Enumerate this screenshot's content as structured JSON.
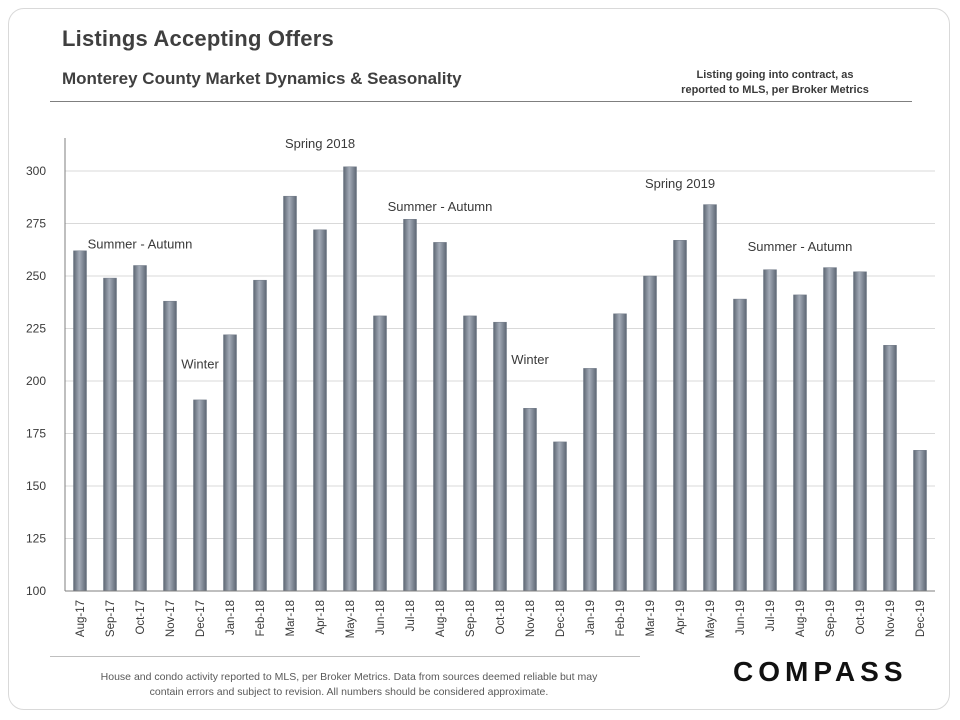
{
  "header": {
    "title": "Listings Accepting Offers",
    "subtitle": "Monterey County Market Dynamics & Seasonality",
    "note_line1": "Listing going into contract, as",
    "note_line2": "reported to MLS, per Broker Metrics"
  },
  "footer": {
    "disclaimer_line1": "House and condo activity reported to MLS, per Broker Metrics. Data from sources deemed reliable but may",
    "disclaimer_line2": "contain errors and subject to revision. All numbers should be considered approximate.",
    "logo_text": "COMPASS"
  },
  "colors": {
    "bar_fill": "#6f7886",
    "bar_highlight": "#a3abb7",
    "gridline": "#d9d9d9",
    "axis": "#7f7f7f",
    "text": "#3a3a3a"
  },
  "chart_data": {
    "type": "bar",
    "title": "Listings Accepting Offers",
    "xlabel": "",
    "ylabel": "",
    "ylim": [
      100,
      310
    ],
    "yticks": [
      100,
      125,
      150,
      175,
      200,
      225,
      250,
      275,
      300
    ],
    "grid": true,
    "categories": [
      "Aug-17",
      "Sep-17",
      "Oct-17",
      "Nov-17",
      "Dec-17",
      "Jan-18",
      "Feb-18",
      "Mar-18",
      "Apr-18",
      "May-18",
      "Jun-18",
      "Jul-18",
      "Aug-18",
      "Sep-18",
      "Oct-18",
      "Nov-18",
      "Dec-18",
      "Jan-19",
      "Feb-19",
      "Mar-19",
      "Apr-19",
      "May-19",
      "Jun-19",
      "Jul-19",
      "Aug-19",
      "Sep-19",
      "Oct-19",
      "Nov-19",
      "Dec-19"
    ],
    "values": [
      262,
      249,
      255,
      238,
      191,
      222,
      248,
      288,
      272,
      302,
      231,
      277,
      266,
      231,
      228,
      187,
      171,
      206,
      232,
      250,
      267,
      284,
      239,
      253,
      241,
      254,
      252,
      217,
      167
    ],
    "annotations": [
      {
        "text": "Summer - Autumn",
        "category": "Oct-17",
        "value": 263
      },
      {
        "text": "Winter",
        "category": "Dec-17",
        "value": 206
      },
      {
        "text": "Spring 2018",
        "category": "Apr-18",
        "value": 311
      },
      {
        "text": "Summer - Autumn",
        "category": "Aug-18",
        "value": 281
      },
      {
        "text": "Winter",
        "category": "Nov-18",
        "value": 208
      },
      {
        "text": "Spring 2019",
        "category": "Apr-19",
        "value": 292
      },
      {
        "text": "Summer - Autumn",
        "category": "Aug-19",
        "value": 262
      }
    ]
  }
}
